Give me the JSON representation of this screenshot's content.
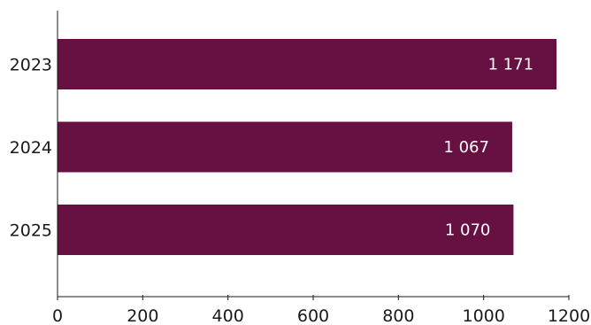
{
  "chart_data": {
    "type": "bar",
    "orientation": "horizontal",
    "title": "",
    "xlabel": "",
    "ylabel": "",
    "categories": [
      "2023",
      "2024",
      "2025"
    ],
    "values": [
      1171,
      1067,
      1070
    ],
    "value_labels": [
      "1 171",
      "1 067",
      "1 070"
    ],
    "xlim": [
      0,
      1200
    ],
    "xticks": [
      0,
      200,
      400,
      600,
      800,
      1000,
      1200
    ],
    "xtick_labels": [
      "0",
      "200",
      "400",
      "600",
      "800",
      "1000",
      "1200"
    ],
    "grid": false,
    "legend": "none",
    "bar_color": "#661141",
    "label_color": "#ffffff",
    "axis_color": "#1a1a1a"
  }
}
